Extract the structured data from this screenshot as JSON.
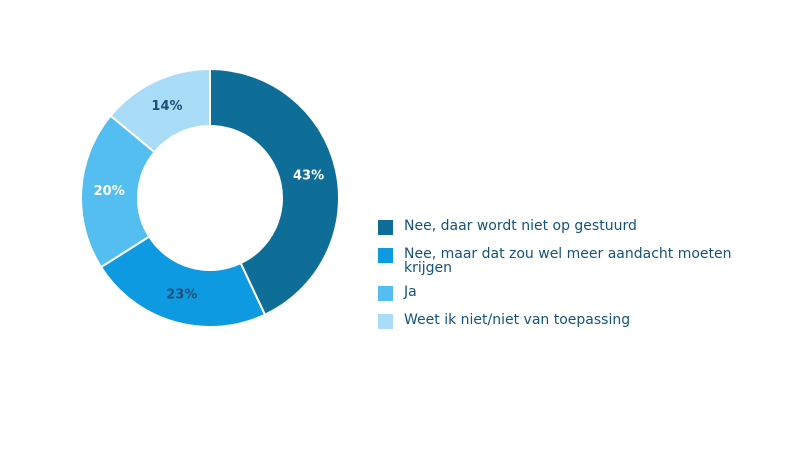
{
  "chart_data": {
    "type": "pie",
    "donut": true,
    "values": [
      43,
      23,
      20,
      14
    ],
    "value_labels": [
      "43%",
      "23%",
      "20%",
      "14%"
    ],
    "categories": [
      "Nee, daar wordt niet op gestuurd",
      "Nee, maar dat zou wel meer aandacht moeten krijgen",
      "Ja",
      "Weet ik niet/niet van toepassing"
    ],
    "colors": [
      "#0e6e98",
      "#0d9ae0",
      "#55bef0",
      "#a9dcf7"
    ],
    "label_colors": [
      "#ffffff",
      "#1c4f74",
      "#ffffff",
      "#1c4f74"
    ],
    "legend_position": "right"
  },
  "legend": {
    "items": [
      {
        "label": "Nee, daar wordt niet op gestuurd",
        "color": "#0e6e98"
      },
      {
        "label": "Nee, maar dat zou wel meer aandacht moeten krijgen",
        "color": "#0d9ae0"
      },
      {
        "label": "Ja",
        "color": "#55bef0"
      },
      {
        "label": "Weet ik niet/niet van toepassing",
        "color": "#a9dcf7"
      }
    ]
  }
}
